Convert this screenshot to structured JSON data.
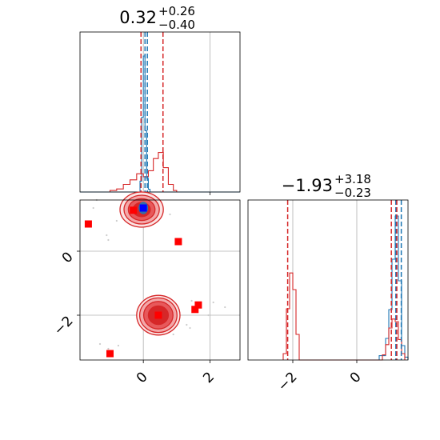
{
  "chart_data": {
    "type": "corner",
    "parameters": [
      {
        "title_value": "0.32",
        "title_plus": "+0.26",
        "title_minus": "−0.40",
        "range": [
          -1.9,
          2.9
        ],
        "ticks": [
          0,
          2
        ],
        "tick_labels": [
          "0",
          "2"
        ]
      },
      {
        "title_value": "−1.93",
        "title_plus": "+3.18",
        "title_minus": "−0.23",
        "range": [
          -3.4,
          1.6
        ],
        "ticks": [
          -2,
          0
        ],
        "tick_labels": [
          "−2",
          "0"
        ]
      }
    ],
    "colors": {
      "blue": "#1f77b4",
      "red": "#d62728",
      "marker_red": "#ff0000",
      "marker_blue": "#0000ff",
      "grid": "#b0b0b0"
    },
    "grid": true,
    "hist1_blue": {
      "bin_edges": [
        -1.9,
        -0.1,
        -0.05,
        0.0,
        0.05,
        0.1,
        0.15,
        0.2,
        2.9
      ],
      "counts": [
        0,
        0.08,
        0.55,
        1.0,
        0.45,
        0.1,
        0.02,
        0
      ]
    },
    "hist1_red": {
      "bin_edges": [
        -1.0,
        -0.8,
        -0.6,
        -0.4,
        -0.2,
        0.0,
        0.15,
        0.3,
        0.45,
        0.6,
        0.75,
        0.9,
        1.0
      ],
      "counts": [
        0.01,
        0.02,
        0.05,
        0.08,
        0.12,
        0.1,
        0.14,
        0.22,
        0.26,
        0.16,
        0.05,
        0.01
      ]
    },
    "hist1_lines": {
      "blue": [
        0.05,
        0.12
      ],
      "red": [
        -0.07,
        0.59
      ]
    },
    "hist2_blue": {
      "bin_edges": [
        0.7,
        0.9,
        1.0,
        1.1,
        1.2,
        1.3,
        1.4,
        1.5,
        1.6
      ],
      "counts": [
        0.03,
        0.15,
        0.35,
        0.7,
        1.0,
        0.55,
        0.1,
        0.02
      ]
    },
    "hist2_red": {
      "bin_edges": [
        -2.3,
        -2.2,
        -2.1,
        -2.0,
        -1.9,
        -1.8,
        0.8,
        0.9,
        1.0,
        1.1,
        1.2,
        1.3,
        1.4,
        1.5
      ],
      "counts": [
        0.05,
        0.4,
        0.68,
        0.55,
        0.2,
        0,
        0.04,
        0.12,
        0.25,
        0.32,
        0.3,
        0.16,
        0.05
      ]
    },
    "hist2_lines": {
      "blue": [
        1.22,
        1.39
      ],
      "red": [
        -2.16,
        1.08,
        1.25
      ]
    },
    "contours_red": [
      {
        "cx": -0.05,
        "cy": 1.3,
        "levels": [
          [
            0.65,
            0.55
          ],
          [
            0.53,
            0.45
          ],
          [
            0.4,
            0.34
          ],
          [
            0.26,
            0.22
          ]
        ]
      },
      {
        "cx": 0.45,
        "cy": -2.0,
        "levels": [
          [
            0.65,
            0.62
          ],
          [
            0.56,
            0.54
          ],
          [
            0.44,
            0.43
          ],
          [
            0.3,
            0.29
          ]
        ]
      }
    ],
    "contour_blue": {
      "cx": 0.0,
      "cy": 1.35,
      "rx": 0.13,
      "ry": 0.18
    },
    "markers_red": [
      {
        "x": -1.65,
        "y": 0.85
      },
      {
        "x": -0.3,
        "y": 1.28
      },
      {
        "x": 1.05,
        "y": 0.3
      },
      {
        "x": 0.45,
        "y": -2.0
      },
      {
        "x": 1.65,
        "y": -1.68
      },
      {
        "x": 1.55,
        "y": -1.82
      },
      {
        "x": -1.0,
        "y": -3.2
      }
    ],
    "marker_blue": {
      "x": 0.0,
      "y": 1.35
    },
    "scatter_points": [
      {
        "x": -1.4,
        "y": 1.6
      },
      {
        "x": -1.1,
        "y": 0.5
      },
      {
        "x": -0.8,
        "y": 0.95
      },
      {
        "x": -1.05,
        "y": 0.35
      },
      {
        "x": 1.45,
        "y": -1.55
      },
      {
        "x": 2.1,
        "y": -1.6
      },
      {
        "x": 2.45,
        "y": -1.75
      },
      {
        "x": 1.3,
        "y": -2.3
      },
      {
        "x": 1.4,
        "y": -2.4
      },
      {
        "x": 0.9,
        "y": -2.6
      },
      {
        "x": -0.75,
        "y": -2.95
      },
      {
        "x": -1.05,
        "y": -3.05
      },
      {
        "x": -1.3,
        "y": -2.9
      },
      {
        "x": 0.8,
        "y": 1.15
      },
      {
        "x": -1.5,
        "y": 1.35
      },
      {
        "x": 1.95,
        "y": -2.0
      }
    ]
  }
}
